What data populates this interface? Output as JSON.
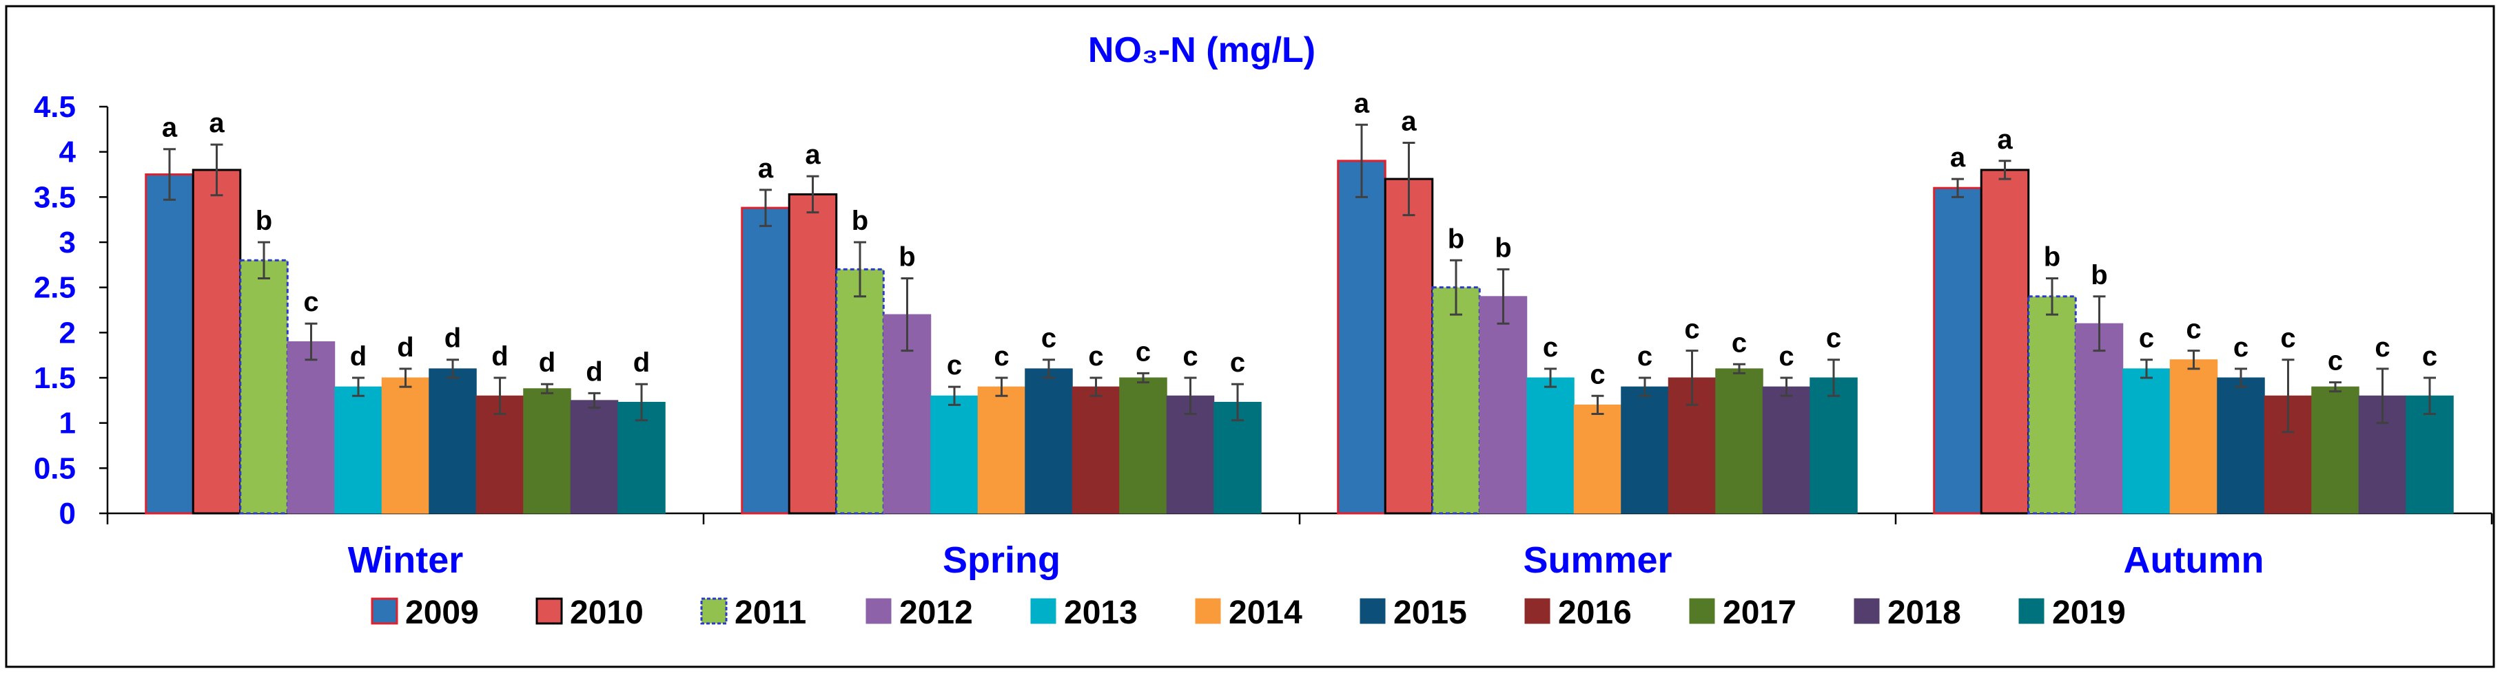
{
  "chart_data": {
    "type": "bar",
    "title": "NO₃-N (mg/L)",
    "xlabel": "",
    "ylabel": "",
    "ylim": [
      0,
      4.5
    ],
    "yticks": [
      "0",
      "0.5",
      "1",
      "1.5",
      "2",
      "2.5",
      "3",
      "3.5",
      "4",
      "4.5"
    ],
    "categories": [
      "Winter",
      "Spring",
      "Summer",
      "Autumn"
    ],
    "legend_position": "bottom",
    "series": [
      {
        "name": "2009",
        "color": "#2e75b6",
        "border": "#e0202a",
        "values": [
          3.75,
          3.38,
          3.9,
          3.6
        ],
        "errors": [
          0.28,
          0.2,
          0.4,
          0.1
        ],
        "labels": [
          "a",
          "a",
          "a",
          "a"
        ]
      },
      {
        "name": "2010",
        "color": "#e05353",
        "border": "#000000",
        "values": [
          3.8,
          3.53,
          3.7,
          3.8
        ],
        "errors": [
          0.28,
          0.2,
          0.4,
          0.1
        ],
        "labels": [
          "a",
          "a",
          "a",
          "a"
        ]
      },
      {
        "name": "2011",
        "color": "#92c14f",
        "border": "#2a3acc",
        "values": [
          2.8,
          2.7,
          2.5,
          2.4
        ],
        "errors": [
          0.2,
          0.3,
          0.3,
          0.2
        ],
        "labels": [
          "b",
          "b",
          "b",
          "b"
        ]
      },
      {
        "name": "2012",
        "color": "#8e62a8",
        "border": "#8e62a8",
        "values": [
          1.9,
          2.2,
          2.4,
          2.1
        ],
        "errors": [
          0.2,
          0.4,
          0.3,
          0.3
        ],
        "labels": [
          "c",
          "b",
          "b",
          "b"
        ]
      },
      {
        "name": "2013",
        "color": "#00b0c8",
        "border": "#00b0c8",
        "values": [
          1.4,
          1.3,
          1.5,
          1.6
        ],
        "errors": [
          0.1,
          0.1,
          0.1,
          0.1
        ],
        "labels": [
          "d",
          "c",
          "c",
          "c"
        ]
      },
      {
        "name": "2014",
        "color": "#f99b3a",
        "border": "#f99b3a",
        "values": [
          1.5,
          1.4,
          1.2,
          1.7
        ],
        "errors": [
          0.1,
          0.1,
          0.1,
          0.1
        ],
        "labels": [
          "d",
          "c",
          "c",
          "c"
        ]
      },
      {
        "name": "2015",
        "color": "#0c4f78",
        "border": "#0c4f78",
        "values": [
          1.6,
          1.6,
          1.4,
          1.5
        ],
        "errors": [
          0.1,
          0.1,
          0.1,
          0.1
        ],
        "labels": [
          "d",
          "c",
          "c",
          "c"
        ]
      },
      {
        "name": "2016",
        "color": "#8e2a2a",
        "border": "#8e2a2a",
        "values": [
          1.3,
          1.4,
          1.5,
          1.3
        ],
        "errors": [
          0.2,
          0.1,
          0.3,
          0.4
        ],
        "labels": [
          "d",
          "c",
          "c",
          "c"
        ]
      },
      {
        "name": "2017",
        "color": "#557a27",
        "border": "#557a27",
        "values": [
          1.38,
          1.5,
          1.6,
          1.4
        ],
        "errors": [
          0.05,
          0.05,
          0.05,
          0.05
        ],
        "labels": [
          "d",
          "c",
          "c",
          "c"
        ]
      },
      {
        "name": "2018",
        "color": "#533e6e",
        "border": "#533e6e",
        "values": [
          1.25,
          1.3,
          1.4,
          1.3
        ],
        "errors": [
          0.08,
          0.2,
          0.1,
          0.3
        ],
        "labels": [
          "d",
          "c",
          "c",
          "c"
        ]
      },
      {
        "name": "2019",
        "color": "#00727e",
        "border": "#00727e",
        "values": [
          1.23,
          1.23,
          1.5,
          1.3
        ],
        "errors": [
          0.2,
          0.2,
          0.2,
          0.2
        ],
        "labels": [
          "d",
          "c",
          "c",
          "c"
        ]
      }
    ]
  }
}
